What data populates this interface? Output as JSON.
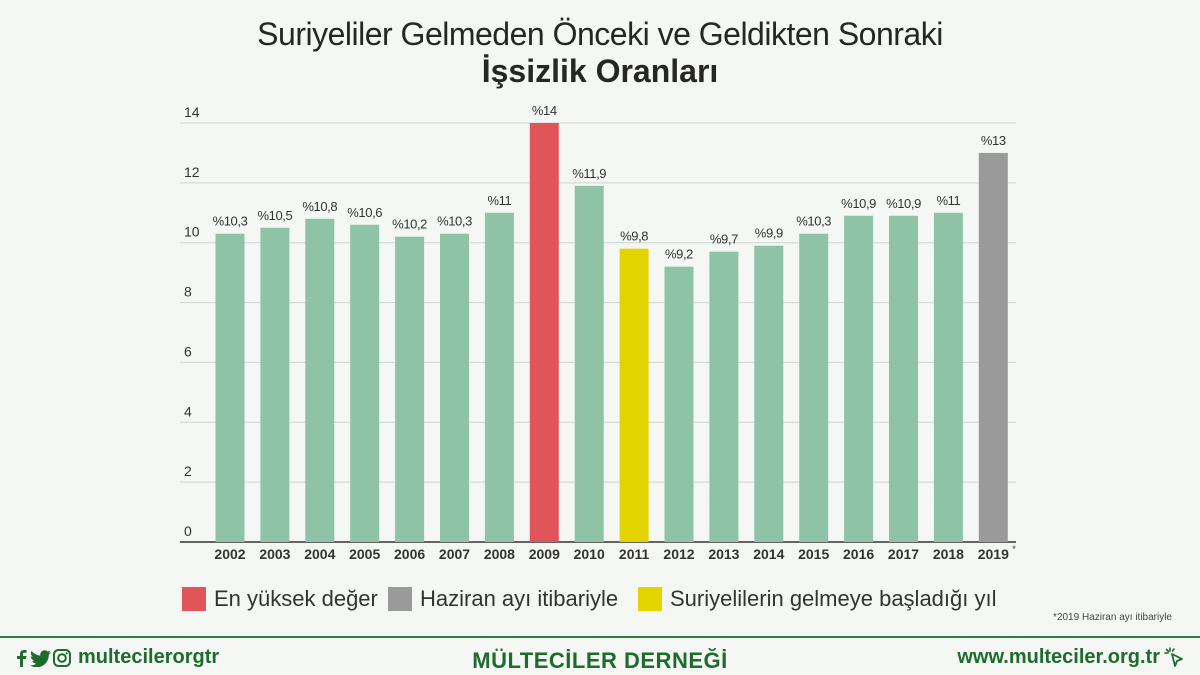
{
  "title": {
    "line1": "Suriyeliler Gelmeden Önceki ve Geldikten Sonraki",
    "line2": "İşsizlik Oranları"
  },
  "colors": {
    "normal": "#8fc3a8",
    "highest": "#e0555a",
    "june": "#9a9a9a",
    "syrian_start": "#e3d400",
    "grid": "#cfd6cf",
    "axis": "#333333",
    "brand": "#1f6b2e"
  },
  "chart_data": {
    "type": "bar",
    "title": "Suriyeliler Gelmeden Önceki ve Geldikten Sonraki İşsizlik Oranları",
    "xlabel": "",
    "ylabel": "",
    "ylim": [
      0,
      14
    ],
    "yticks": [
      0,
      2,
      4,
      6,
      8,
      10,
      12,
      14
    ],
    "grid": true,
    "categories": [
      "2002",
      "2003",
      "2004",
      "2005",
      "2006",
      "2007",
      "2008",
      "2009",
      "2010",
      "2011",
      "2012",
      "2013",
      "2014",
      "2015",
      "2016",
      "2017",
      "2018",
      "2019"
    ],
    "values": [
      10.3,
      10.5,
      10.8,
      10.6,
      10.2,
      10.3,
      11,
      14,
      11.9,
      9.8,
      9.2,
      9.7,
      9.9,
      10.3,
      10.9,
      10.9,
      11,
      13
    ],
    "labels": [
      "%10,3",
      "%10,5",
      "%10,8",
      "%10,6",
      "%10,2",
      "%10,3",
      "%11",
      "%14",
      "%11,9",
      "%9,8",
      "%9,2",
      "%9,7",
      "%9,9",
      "%10,3",
      "%10,9",
      "%10,9",
      "%11",
      "%13"
    ],
    "bar_kinds": [
      "normal",
      "normal",
      "normal",
      "normal",
      "normal",
      "normal",
      "normal",
      "highest",
      "normal",
      "syrian_start",
      "normal",
      "normal",
      "normal",
      "normal",
      "normal",
      "normal",
      "normal",
      "june"
    ],
    "last_category_marker": "*"
  },
  "legend": [
    {
      "label": "En yüksek değer",
      "kind": "highest"
    },
    {
      "label": "Haziran ayı itibariyle",
      "kind": "june"
    },
    {
      "label": "Suriyelilerin gelmeye başladığı yıl",
      "kind": "syrian_start"
    }
  ],
  "footnote": "*2019 Haziran ayı itibariyle",
  "footer": {
    "social_handle": "multecilerorgtr",
    "org_name": "MÜLTECİLER DERNEĞİ",
    "website": "www.multeciler.org.tr",
    "social_icons": [
      "facebook-icon",
      "twitter-icon",
      "instagram-icon"
    ],
    "cursor_icon": "cursor-click-icon"
  }
}
